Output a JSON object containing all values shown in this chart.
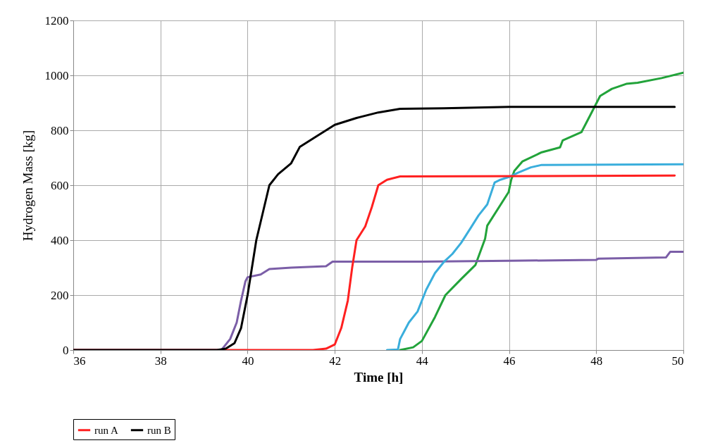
{
  "chart_data": {
    "type": "line",
    "xlabel": "Time [h]",
    "ylabel": "Hydrogen Mass [kg]",
    "xlim": [
      36,
      50
    ],
    "xticks": [
      36,
      38,
      40,
      42,
      44,
      46,
      48,
      50
    ],
    "ylim": [
      0,
      1200
    ],
    "yticks": [
      0,
      200,
      400,
      600,
      800,
      1000,
      1200
    ],
    "grid": true,
    "legend": "bottom",
    "line_style": "solid",
    "marker": "none",
    "series": [
      {
        "color": "#22a33a",
        "x": [
          43.5,
          43.8,
          44.0,
          44.3,
          44.54,
          44.91,
          45.23,
          45.45,
          45.5,
          45.99,
          46.05,
          46.12,
          46.31,
          46.75,
          47.17,
          47.23,
          47.66,
          47.87,
          48.09,
          48.36,
          48.69,
          48.95,
          49.5,
          50.0
        ],
        "values": [
          0,
          10,
          33,
          120,
          200,
          260,
          310,
          405,
          453,
          575,
          620,
          652,
          687,
          720,
          738,
          763,
          793,
          857,
          925,
          951,
          969,
          973,
          990,
          1010
        ]
      },
      {
        "color": "#7b5ea7",
        "x": [
          36,
          39.4,
          39.6,
          39.75,
          39.85,
          39.95,
          40.0,
          40.3,
          40.5,
          41.0,
          41.8,
          41.95,
          44.0,
          46.0,
          48.0,
          48.05,
          49.6,
          49.7,
          50.0
        ],
        "values": [
          0,
          0,
          40,
          100,
          180,
          250,
          265,
          275,
          295,
          300,
          305,
          322,
          322,
          325,
          328,
          333,
          337,
          358,
          358
        ]
      },
      {
        "color": "#3aaedc",
        "x": [
          43.2,
          43.45,
          43.5,
          43.6,
          43.7,
          43.9,
          44.05,
          44.1,
          44.3,
          44.5,
          44.7,
          44.9,
          45.13,
          45.3,
          45.5,
          45.67,
          45.8,
          46.0,
          46.2,
          46.5,
          46.75,
          50.0
        ],
        "values": [
          0,
          2,
          40,
          70,
          100,
          140,
          200,
          220,
          280,
          320,
          350,
          390,
          447,
          490,
          530,
          610,
          620,
          630,
          645,
          665,
          674,
          676
        ]
      },
      {
        "name": "run A",
        "color": "#ff2020",
        "x": [
          36,
          41.5,
          41.8,
          42.0,
          42.15,
          42.3,
          42.4,
          42.5,
          42.7,
          42.85,
          43.0,
          43.2,
          43.5,
          49.8
        ],
        "values": [
          0,
          0,
          5,
          20,
          80,
          180,
          300,
          400,
          450,
          520,
          600,
          620,
          632,
          635
        ]
      },
      {
        "name": "run B",
        "color": "#000000",
        "x": [
          36,
          39.3,
          39.5,
          39.7,
          39.85,
          40.0,
          40.1,
          40.2,
          40.35,
          40.5,
          40.7,
          41.0,
          41.2,
          41.5,
          42.0,
          42.5,
          43.0,
          43.5,
          44.5,
          46.0,
          49.8
        ],
        "values": [
          0,
          0,
          5,
          25,
          80,
          200,
          300,
          400,
          500,
          600,
          640,
          680,
          740,
          770,
          820,
          845,
          865,
          878,
          880,
          885,
          885
        ]
      }
    ]
  }
}
